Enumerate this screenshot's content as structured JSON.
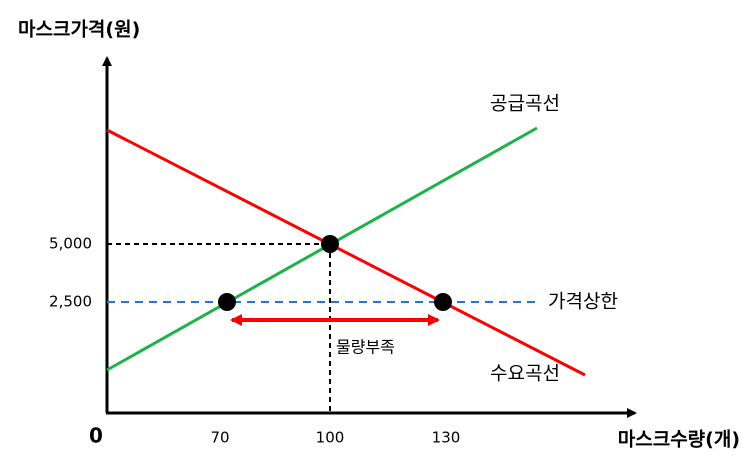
{
  "y_axis_title": "마스크가격(원)",
  "x_axis_title": "마스크수량(개)",
  "origin": "0",
  "x_ticks": [
    "70",
    "100",
    "130"
  ],
  "y_ticks": [
    "5,000",
    "2,500"
  ],
  "labels": {
    "supply": "공급곡선",
    "demand": "수요곡선",
    "price_ceiling": "가격상한",
    "shortage": "물량부족"
  }
}
